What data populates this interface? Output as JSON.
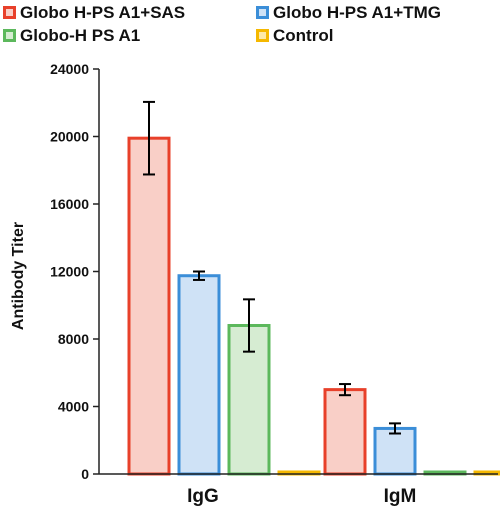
{
  "chart_data": {
    "type": "bar",
    "title": "",
    "xlabel": "",
    "ylabel": "Antibody Titer",
    "ylim": [
      0,
      24000
    ],
    "yticks": [
      0,
      4000,
      8000,
      12000,
      16000,
      20000,
      24000
    ],
    "ytick_labels": [
      "0",
      "4000",
      "8000",
      "12000",
      "16000",
      "20000",
      "24000"
    ],
    "categories": [
      "IgG",
      "IgM"
    ],
    "grid": false,
    "legend_position": "top",
    "series": [
      {
        "name": "Globo H-PS A1+SAS",
        "values": [
          19900,
          5000
        ],
        "errors": [
          2150,
          330
        ],
        "stroke": "#e8402a",
        "fill": "#f9cfc7"
      },
      {
        "name": "Globo H-PS A1+TMG",
        "values": [
          11750,
          2700
        ],
        "errors": [
          250,
          300
        ],
        "stroke": "#3b8ed8",
        "fill": "#cfe2f6"
      },
      {
        "name": "Globo-H PS A1",
        "values": [
          8800,
          80
        ],
        "errors": [
          1550,
          0
        ],
        "stroke": "#5cb85c",
        "fill": "#d6ecd2"
      },
      {
        "name": "Control",
        "values": [
          120,
          120
        ],
        "errors": [
          0,
          0
        ],
        "stroke": "#f5b800",
        "fill": "#fde9a8"
      }
    ]
  }
}
